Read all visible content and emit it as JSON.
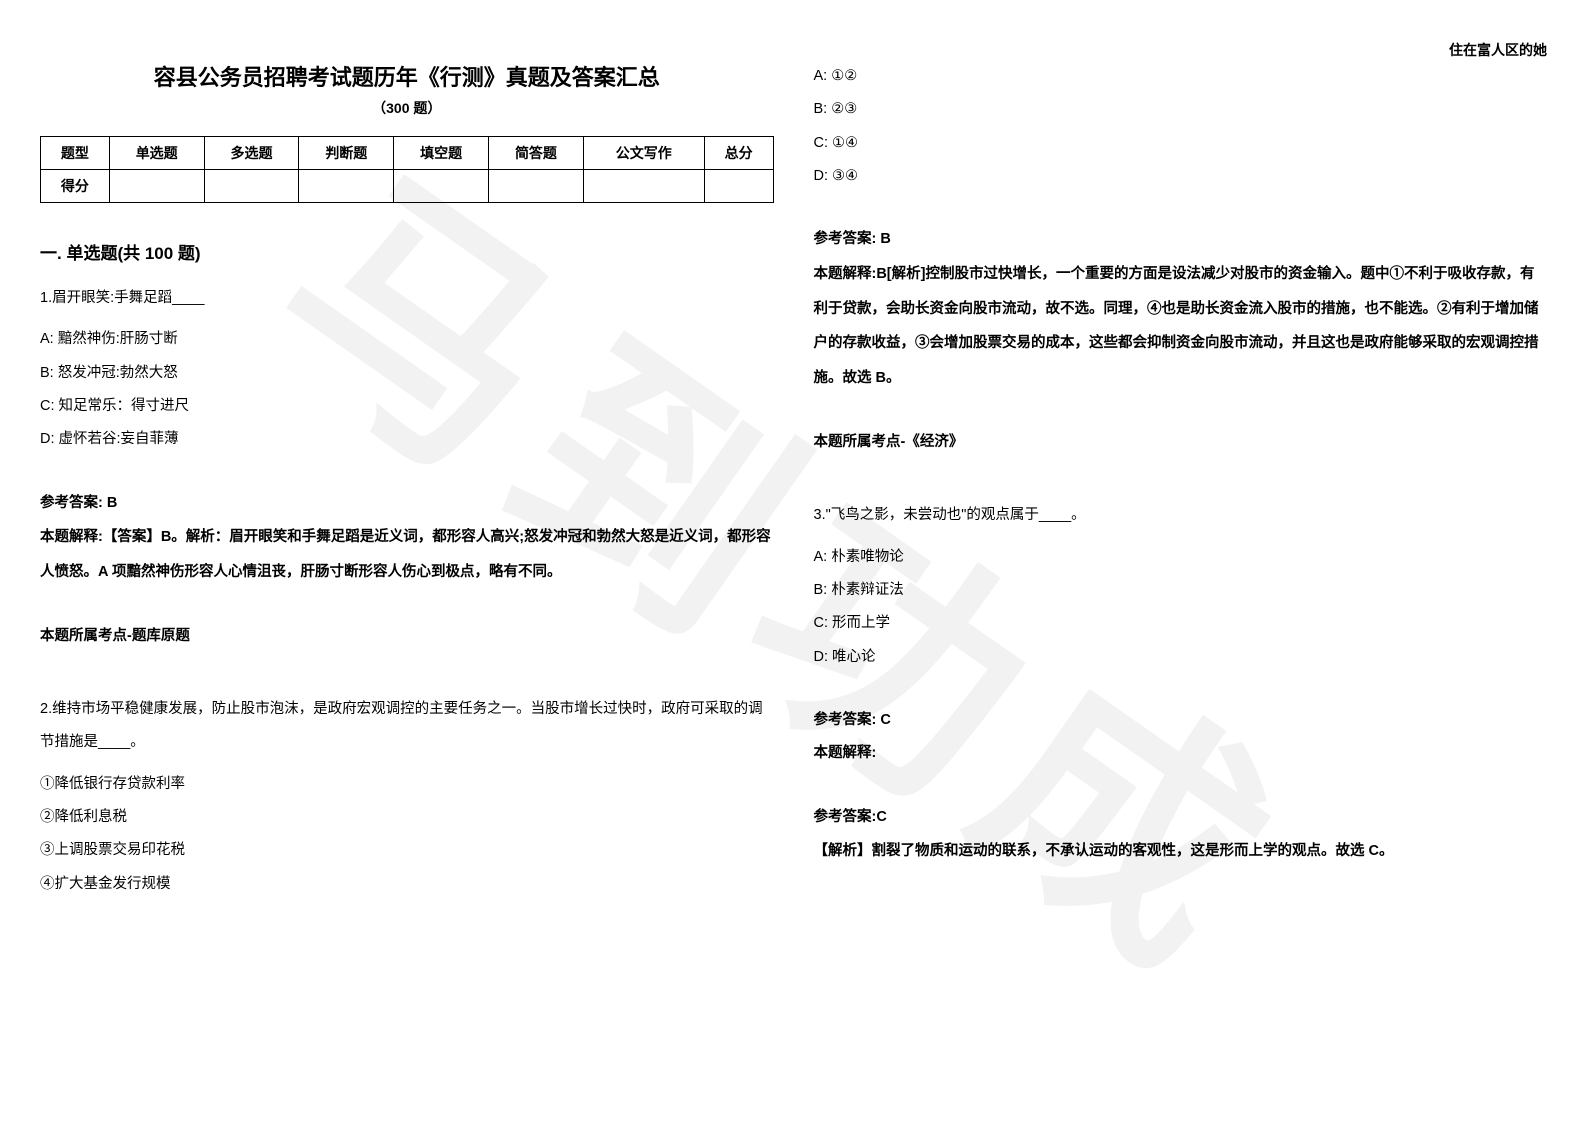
{
  "header_right": "住在富人区的她",
  "watermark": "马到功成",
  "title": "容县公务员招聘考试题历年《行测》真题及答案汇总",
  "subtitle": "（300 题）",
  "score_table": {
    "headers": [
      "题型",
      "单选题",
      "多选题",
      "判断题",
      "填空题",
      "简答题",
      "公文写作",
      "总分"
    ],
    "row_label": "得分"
  },
  "section_heading": "一. 单选题(共 100 题)",
  "q1": {
    "stem": "1.眉开眼笑:手舞足蹈____",
    "A": "A: 黯然神伤:肝肠寸断",
    "B": "B: 怒发冲冠:勃然大怒",
    "C": "C: 知足常乐：得寸进尺",
    "D": "D: 虚怀若谷:妄自菲薄",
    "ans": "参考答案: B",
    "explain": "本题解释:【答案】B。解析：眉开眼笑和手舞足蹈是近义词，都形容人高兴;怒发冲冠和勃然大怒是近义词，都形容人愤怒。A 项黯然神伤形容人心情沮丧，肝肠寸断形容人伤心到极点，略有不同。",
    "kp": "本题所属考点-题库原题"
  },
  "q2": {
    "stem": "2.维持市场平稳健康发展，防止股市泡沫，是政府宏观调控的主要任务之一。当股市增长过快时，政府可采取的调节措施是____。",
    "o1": "①降低银行存贷款利率",
    "o2": "②降低利息税",
    "o3": "③上调股票交易印花税",
    "o4": "④扩大基金发行规模",
    "A": "A: ①②",
    "B": "B: ②③",
    "C": "C: ①④",
    "D": "D: ③④",
    "ans": "参考答案: B",
    "explain": "本题解释:B[解析]控制股市过快增长，一个重要的方面是设法减少对股市的资金输入。题中①不利于吸收存款，有利于贷款，会助长资金向股市流动，故不选。同理，④也是助长资金流入股市的措施，也不能选。②有利于增加储户的存款收益，③会增加股票交易的成本，这些都会抑制资金向股市流动，并且这也是政府能够采取的宏观调控措施。故选 B。",
    "kp": "本题所属考点-《经济》"
  },
  "q3": {
    "stem": "3.\"飞鸟之影，未尝动也\"的观点属于____。",
    "A": "A: 朴素唯物论",
    "B": "B: 朴素辩证法",
    "C": "C: 形而上学",
    "D": "D: 唯心论",
    "ans": "参考答案: C",
    "explain_label": "本题解释:",
    "ans2": "参考答案:C",
    "analysis": "【解析】割裂了物质和运动的联系，不承认运动的客观性，这是形而上学的观点。故选 C。"
  },
  "colors": {
    "background": "#ffffff",
    "text": "#000000",
    "watermark": "rgba(0,0,0,0.05)",
    "table_border": "#000000"
  }
}
